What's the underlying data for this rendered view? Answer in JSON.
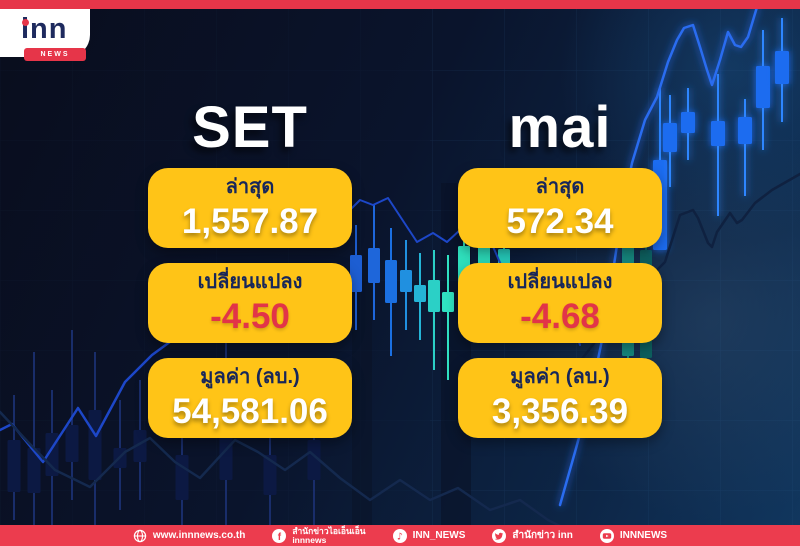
{
  "brand": {
    "logo_text": "inn",
    "logo_sub": "NEWS"
  },
  "columns": [
    {
      "title": "SET",
      "boxes": [
        {
          "label": "ล่าสุด",
          "value": "1,557.87",
          "value_color": "white"
        },
        {
          "label": "เปลี่ยนแปลง",
          "value": "-4.50",
          "value_color": "red"
        },
        {
          "label": "มูลค่า (ลบ.)",
          "value": "54,581.06",
          "value_color": "white"
        }
      ]
    },
    {
      "title": "mai",
      "boxes": [
        {
          "label": "ล่าสุด",
          "value": "572.34",
          "value_color": "white"
        },
        {
          "label": "เปลี่ยนแปลง",
          "value": "-4.68",
          "value_color": "red"
        },
        {
          "label": "มูลค่า (ลบ.)",
          "value": "3,356.39",
          "value_color": "white"
        }
      ]
    }
  ],
  "footer": {
    "items": [
      {
        "icon": "globe-icon",
        "label": "www.innnews.co.th"
      },
      {
        "icon": "facebook-icon",
        "label": "สำนักข่าวไอเอ็นเอ็น",
        "label2": "innnews"
      },
      {
        "icon": "tiktok-icon",
        "label": "INN_NEWS"
      },
      {
        "icon": "twitter-icon",
        "label": "สำนักข่าว inn"
      },
      {
        "icon": "youtube-icon",
        "label": "INNNEWS"
      }
    ]
  },
  "colors": {
    "brand_red": "#e63549",
    "footer_red": "#ec3c4e",
    "panel_yellow": "#ffc417",
    "label_navy": "#17265a",
    "negative_red": "#e23448",
    "bg_dark": "#090d1d",
    "bg_light": "#11375f",
    "candle_bright_blue": "#1e6cf0",
    "candle_teal": "#30e2c2"
  }
}
